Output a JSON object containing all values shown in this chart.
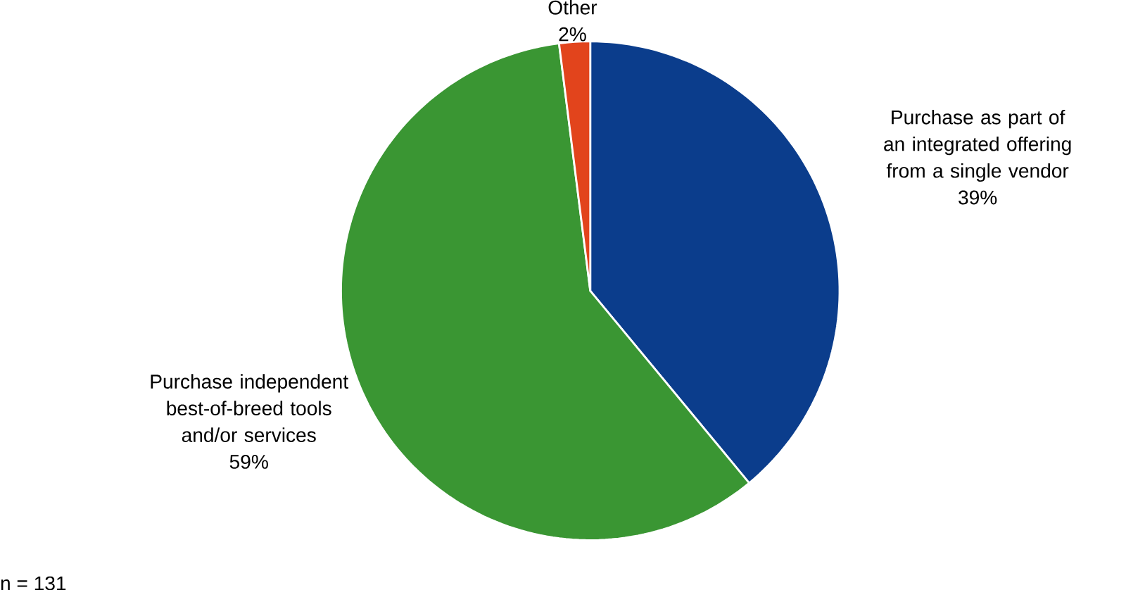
{
  "chart_data": {
    "type": "pie",
    "categories": [
      "Purchase as part of an integrated offering from a single vendor",
      "Purchase independent best-of-breed tools and/or services",
      "Other"
    ],
    "values": [
      39,
      59,
      2
    ],
    "value_labels": [
      "39%",
      "59%",
      "2%"
    ],
    "colors": [
      "#0b3d8c",
      "#3a9633",
      "#e2441c"
    ],
    "annotations": [
      "n = 131"
    ]
  }
}
